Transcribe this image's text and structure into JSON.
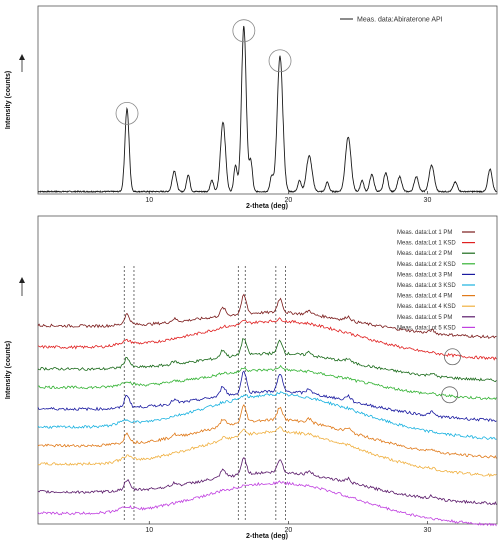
{
  "chart_data": [
    {
      "type": "line",
      "xlabel": "2-theta (deg)",
      "ylabel": "Intensity (counts)",
      "xlim": [
        2,
        35
      ],
      "ylim": [
        0,
        100
      ],
      "x_ticks": [
        10,
        20,
        30
      ],
      "legend": {
        "placement": "top-right",
        "entries": [
          "Meas. data:Abiraterone API"
        ]
      },
      "series": [
        {
          "name": "Meas. data:Abiraterone API",
          "color": "#1a1a1a",
          "peaks": [
            {
              "x": 8.4,
              "height": 44,
              "width": 0.15
            },
            {
              "x": 11.8,
              "height": 11,
              "width": 0.15
            },
            {
              "x": 12.8,
              "height": 9,
              "width": 0.12
            },
            {
              "x": 14.5,
              "height": 6,
              "width": 0.12
            },
            {
              "x": 15.3,
              "height": 37,
              "width": 0.18
            },
            {
              "x": 16.2,
              "height": 14,
              "width": 0.12
            },
            {
              "x": 16.8,
              "height": 88,
              "width": 0.17
            },
            {
              "x": 17.3,
              "height": 16,
              "width": 0.12
            },
            {
              "x": 18.8,
              "height": 8,
              "width": 0.12
            },
            {
              "x": 19.4,
              "height": 72,
              "width": 0.2
            },
            {
              "x": 20.8,
              "height": 6,
              "width": 0.12
            },
            {
              "x": 21.5,
              "height": 19,
              "width": 0.2
            },
            {
              "x": 22.8,
              "height": 5,
              "width": 0.12
            },
            {
              "x": 24.3,
              "height": 29,
              "width": 0.2
            },
            {
              "x": 25.3,
              "height": 6,
              "width": 0.12
            },
            {
              "x": 26.0,
              "height": 9,
              "width": 0.15
            },
            {
              "x": 27.0,
              "height": 10,
              "width": 0.15
            },
            {
              "x": 28.0,
              "height": 8,
              "width": 0.15
            },
            {
              "x": 29.2,
              "height": 8,
              "width": 0.15
            },
            {
              "x": 30.3,
              "height": 14,
              "width": 0.18
            },
            {
              "x": 32.0,
              "height": 5,
              "width": 0.15
            },
            {
              "x": 34.5,
              "height": 12,
              "width": 0.15
            }
          ],
          "baseline": 1
        }
      ],
      "circled_peaks": [
        8.4,
        16.8,
        19.4
      ]
    },
    {
      "type": "line",
      "xlabel": "2-theta (deg)",
      "ylabel": "Intensity (counts)",
      "xlim": [
        2,
        35
      ],
      "ylim": [
        0,
        100
      ],
      "x_ticks": [
        10,
        20,
        30
      ],
      "legend": {
        "placement": "top-right"
      },
      "marker_lines": [
        8.2,
        8.9,
        16.4,
        16.9,
        19.1,
        19.8
      ],
      "circled_points": [
        {
          "x": 31.8,
          "series": 1
        },
        {
          "x": 31.6,
          "series": 3
        }
      ],
      "series": [
        {
          "name": "Meas. data:Lot 1 PM",
          "color": "#7a1a1a",
          "offset": 64,
          "halo": 0.45,
          "crystal": 0.65
        },
        {
          "name": "Meas. data:Lot 1 KSD",
          "color": "#e02020",
          "offset": 57,
          "halo": 0.75,
          "crystal": 0.1
        },
        {
          "name": "Meas. data:Lot 2 PM",
          "color": "#1a6a1a",
          "offset": 50,
          "halo": 0.5,
          "crystal": 0.6
        },
        {
          "name": "Meas. data:Lot 2 KSD",
          "color": "#33b233",
          "offset": 44,
          "halo": 0.55,
          "crystal": 0.15
        },
        {
          "name": "Meas. data:Lot 3 PM",
          "color": "#1a1aa0",
          "offset": 37,
          "halo": 0.55,
          "crystal": 0.8
        },
        {
          "name": "Meas. data:Lot 3 KSD",
          "color": "#1ab2e0",
          "offset": 31,
          "halo": 0.9,
          "crystal": 0.1
        },
        {
          "name": "Meas. data:Lot 4 PM",
          "color": "#e07a1a",
          "offset": 25,
          "halo": 0.75,
          "crystal": 0.6
        },
        {
          "name": "Meas. data:Lot 4 KSD",
          "color": "#f0b040",
          "offset": 19,
          "halo": 0.9,
          "crystal": 0.2
        },
        {
          "name": "Meas. data:Lot 5 PM",
          "color": "#5a1a6a",
          "offset": 10,
          "halo": 0.6,
          "crystal": 0.6
        },
        {
          "name": "Meas. data:Lot 5 KSD",
          "color": "#c040e0",
          "offset": 3,
          "halo": 0.85,
          "crystal": 0.05
        }
      ]
    }
  ]
}
